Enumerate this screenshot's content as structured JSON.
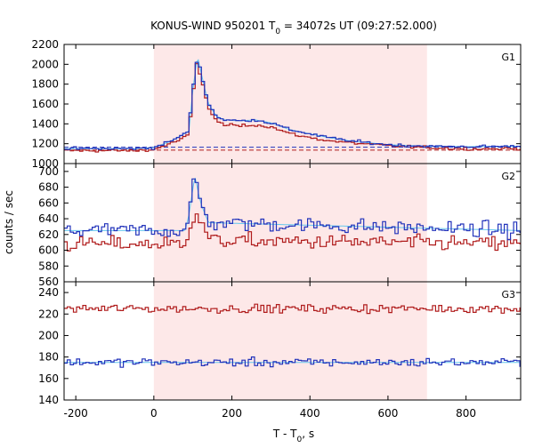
{
  "chart_data": {
    "type": "line",
    "title_parts": {
      "prefix": "KONUS-WIND 950201 T",
      "subscript": "0",
      "suffix": " = 34072s UT (09:27:52.000)"
    },
    "xlabel_parts": {
      "prefix": "T - T",
      "subscript": "0",
      "suffix": ", s"
    },
    "ylabel": "counts / sec",
    "xlim": [
      -230,
      940
    ],
    "x_ticks": [
      -200,
      0,
      200,
      400,
      600,
      800
    ],
    "highlight_interval": [
      0,
      700
    ],
    "colors": {
      "red_series": "#b01c1c",
      "blue_series": "#2233bb",
      "fit_line": "#66c8ee",
      "highlight": "#fde8e8"
    },
    "panels": [
      {
        "name": "G1",
        "ylim": [
          1000,
          2200
        ],
        "y_ticks": [
          1000,
          1200,
          1400,
          1600,
          1800,
          2000,
          2200
        ],
        "background_levels": {
          "red": 1135,
          "blue": 1165
        },
        "red_profile": [
          [
            -230,
            1130
          ],
          [
            -50,
            1130
          ],
          [
            0,
            1140
          ],
          [
            40,
            1200
          ],
          [
            70,
            1240
          ],
          [
            90,
            1300
          ],
          [
            100,
            1700
          ],
          [
            110,
            2000
          ],
          [
            125,
            1820
          ],
          [
            140,
            1560
          ],
          [
            160,
            1430
          ],
          [
            180,
            1390
          ],
          [
            220,
            1380
          ],
          [
            260,
            1390
          ],
          [
            300,
            1370
          ],
          [
            350,
            1300
          ],
          [
            400,
            1260
          ],
          [
            450,
            1230
          ],
          [
            500,
            1210
          ],
          [
            600,
            1180
          ],
          [
            700,
            1160
          ],
          [
            800,
            1150
          ],
          [
            940,
            1150
          ]
        ],
        "blue_profile": [
          [
            -230,
            1150
          ],
          [
            -50,
            1150
          ],
          [
            0,
            1160
          ],
          [
            40,
            1220
          ],
          [
            70,
            1280
          ],
          [
            90,
            1330
          ],
          [
            100,
            1750
          ],
          [
            112,
            2080
          ],
          [
            125,
            1850
          ],
          [
            140,
            1600
          ],
          [
            160,
            1480
          ],
          [
            180,
            1440
          ],
          [
            220,
            1430
          ],
          [
            260,
            1440
          ],
          [
            300,
            1410
          ],
          [
            350,
            1340
          ],
          [
            400,
            1300
          ],
          [
            450,
            1260
          ],
          [
            500,
            1230
          ],
          [
            600,
            1190
          ],
          [
            700,
            1175
          ],
          [
            800,
            1170
          ],
          [
            940,
            1175
          ]
        ]
      },
      {
        "name": "G2",
        "ylim": [
          560,
          710
        ],
        "y_ticks": [
          560,
          580,
          600,
          620,
          640,
          660,
          680,
          700
        ],
        "background_levels": {
          "red": 608,
          "blue": 625
        },
        "red_profile": [
          [
            -230,
            608
          ],
          [
            80,
            608
          ],
          [
            90,
            630
          ],
          [
            110,
            648
          ],
          [
            130,
            625
          ],
          [
            150,
            612
          ],
          [
            940,
            608
          ]
        ],
        "blue_profile": [
          [
            -230,
            625
          ],
          [
            80,
            625
          ],
          [
            90,
            645
          ],
          [
            105,
            694
          ],
          [
            120,
            660
          ],
          [
            140,
            635
          ],
          [
            940,
            625
          ]
        ]
      },
      {
        "name": "G3",
        "ylim": [
          140,
          250
        ],
        "y_ticks": [
          140,
          160,
          180,
          200,
          220,
          240
        ],
        "background_levels": {
          "red": 225,
          "blue": 175
        },
        "red_profile": [
          [
            -230,
            225
          ],
          [
            940,
            225
          ]
        ],
        "blue_profile": [
          [
            -230,
            175
          ],
          [
            940,
            175
          ]
        ]
      }
    ]
  }
}
